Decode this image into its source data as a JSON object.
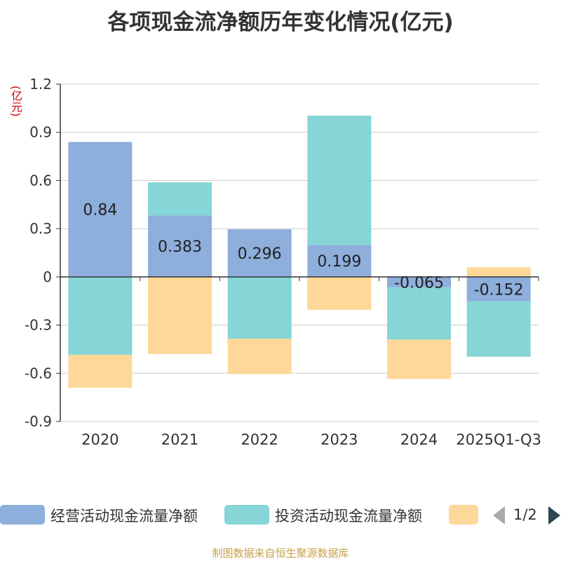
{
  "chart_data": {
    "type": "bar",
    "stacked": true,
    "title": "各项现金流净额历年变化情况(亿元)",
    "ylabel": "(亿元)",
    "xlabel": "",
    "ylim": [
      -0.9,
      1.2
    ],
    "yticks": [
      "1.2",
      "0.9",
      "0.6",
      "0.3",
      "0",
      "-0.3",
      "-0.6",
      "-0.9"
    ],
    "ytick_values": [
      1.2,
      0.9,
      0.6,
      0.3,
      0,
      -0.3,
      -0.6,
      -0.9
    ],
    "grid": true,
    "categories": [
      "2020",
      "2021",
      "2022",
      "2023",
      "2024",
      "2025Q1-Q3"
    ],
    "series": [
      {
        "name": "经营活动现金流量净额",
        "color": "#8eaedc",
        "values": [
          0.84,
          0.383,
          0.296,
          0.199,
          -0.065,
          -0.152
        ],
        "labels": [
          "0.84",
          "0.383",
          "0.296",
          "0.199",
          "-0.065",
          "-0.152"
        ]
      },
      {
        "name": "投资活动现金流量净额",
        "color": "#86d5d7",
        "values": [
          -0.485,
          0.205,
          -0.385,
          0.805,
          -0.325,
          -0.345
        ]
      },
      {
        "name": "",
        "color": "#fed898",
        "values": [
          -0.205,
          -0.48,
          -0.22,
          -0.205,
          -0.245,
          0.06
        ]
      }
    ]
  },
  "legend": {
    "items": [
      {
        "label": "经营活动现金流量净额",
        "color": "#8eaedc"
      },
      {
        "label": "投资活动现金流量净额",
        "color": "#86d5d7"
      },
      {
        "label": "",
        "color": "#fed898"
      }
    ],
    "page": "1/2"
  },
  "source": "制图数据来自恒生聚源数据库"
}
